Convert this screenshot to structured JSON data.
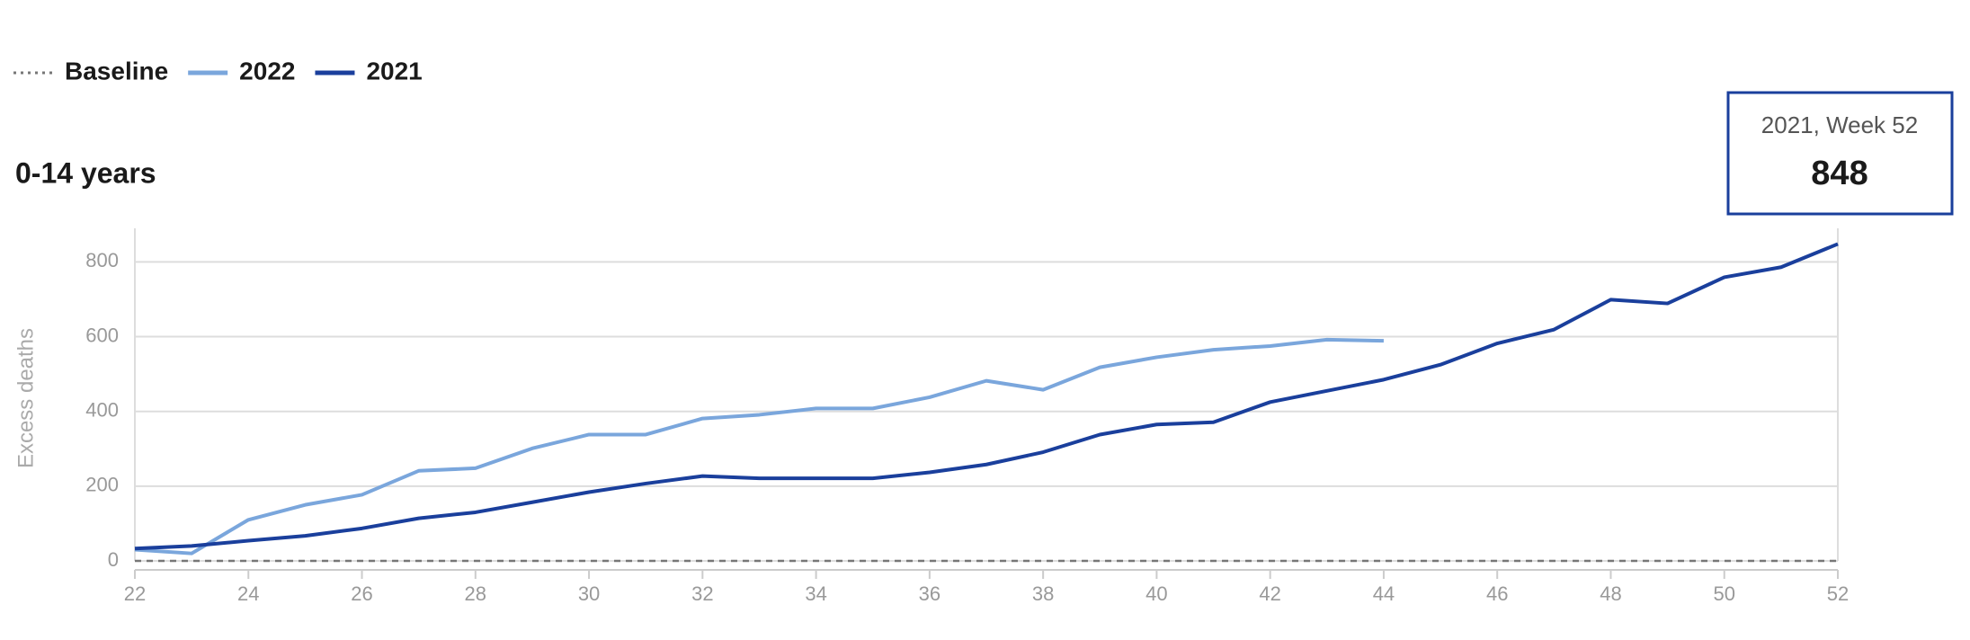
{
  "chart_data": {
    "type": "line",
    "title": "0-14 years",
    "y_label": "Excess deaths",
    "x": [
      22,
      23,
      24,
      25,
      26,
      27,
      28,
      29,
      30,
      31,
      32,
      33,
      34,
      35,
      36,
      37,
      38,
      39,
      40,
      41,
      42,
      43,
      44,
      45,
      46,
      47,
      48,
      49,
      50,
      51,
      52
    ],
    "series": [
      {
        "name": "Baseline",
        "color": "#777777",
        "dash": true,
        "values": [
          0,
          0,
          0,
          0,
          0,
          0,
          0,
          0,
          0,
          0,
          0,
          0,
          0,
          0,
          0,
          0,
          0,
          0,
          0,
          0,
          0,
          0,
          0,
          0,
          0,
          0,
          0,
          0,
          0,
          0,
          0
        ]
      },
      {
        "name": "2022",
        "color": "#7aa6dc",
        "values": [
          30,
          20,
          110,
          150,
          177,
          241,
          248,
          301,
          338,
          338,
          381,
          391,
          408,
          408,
          438,
          482,
          458,
          518,
          545,
          565,
          575,
          592,
          589,
          null,
          null,
          null,
          null,
          null,
          null,
          null,
          null
        ]
      },
      {
        "name": "2021",
        "color": "#1a3f9c",
        "values": [
          33,
          40,
          54,
          67,
          87,
          114,
          130,
          157,
          184,
          207,
          227,
          221,
          221,
          221,
          237,
          258,
          291,
          338,
          365,
          371,
          425,
          455,
          485,
          525,
          582,
          619,
          699,
          689,
          759,
          786,
          848
        ]
      }
    ],
    "xlim": [
      22,
      52
    ],
    "xticks": [
      22,
      24,
      26,
      28,
      30,
      32,
      34,
      36,
      38,
      40,
      42,
      44,
      46,
      48,
      50,
      52
    ],
    "ylim": [
      0,
      890
    ],
    "yticks": [
      0,
      200,
      400,
      600,
      800
    ],
    "grid": true,
    "tooltip": {
      "title": "2021, Week 52",
      "value": 848
    }
  }
}
